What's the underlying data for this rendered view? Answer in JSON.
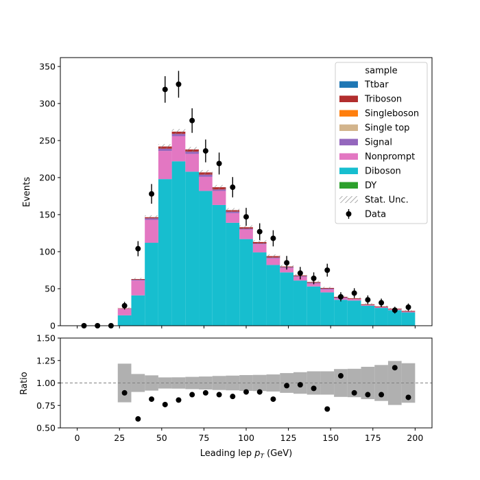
{
  "chart_data": {
    "type": "bar",
    "stacked": true,
    "xlabel": "Leading lep $p_T$ (GeV)",
    "xlabel_parts": {
      "pre": "Leading lep ",
      "var": "p",
      "sub": "T",
      "post": " (GeV)"
    },
    "ylabel": "Events",
    "ratio_ylabel": "Ratio",
    "xlim": [
      -10,
      210
    ],
    "ylim": [
      0,
      362
    ],
    "ratio_ylim": [
      0.5,
      1.5
    ],
    "x_ticks": [
      "0",
      "25",
      "50",
      "75",
      "100",
      "125",
      "150",
      "175",
      "200"
    ],
    "y_ticks": [
      "0",
      "50",
      "100",
      "150",
      "200",
      "250",
      "300",
      "350"
    ],
    "ratio_ticks": [
      "0.50",
      "0.75",
      "1.00",
      "1.25",
      "1.50"
    ],
    "bin_edges": [
      0,
      8,
      16,
      24,
      32,
      40,
      48,
      56,
      64,
      72,
      80,
      88,
      96,
      104,
      112,
      120,
      128,
      136,
      144,
      152,
      160,
      168,
      176,
      184,
      192,
      200
    ],
    "grid": false,
    "legend": {
      "title": "sample",
      "placement": "top-right",
      "entries": [
        {
          "label": "Ttbar",
          "kind": "patch",
          "color": "#1f77b4"
        },
        {
          "label": "Triboson",
          "kind": "patch",
          "color": "#b22e2e"
        },
        {
          "label": "Singleboson",
          "kind": "patch",
          "color": "#ff7f0e"
        },
        {
          "label": "Single top",
          "kind": "patch",
          "color": "#d2b48c"
        },
        {
          "label": "Signal",
          "kind": "patch",
          "color": "#9467bd"
        },
        {
          "label": "Nonprompt",
          "kind": "patch",
          "color": "#e377c2"
        },
        {
          "label": "Diboson",
          "kind": "patch",
          "color": "#17becf"
        },
        {
          "label": "DY",
          "kind": "patch",
          "color": "#2ca02c"
        },
        {
          "label": "Stat. Unc.",
          "kind": "hatch",
          "color": "#888888"
        },
        {
          "label": "Data",
          "kind": "errorbar",
          "color": "#000000"
        }
      ]
    },
    "series": [
      {
        "name": "DY",
        "color": "#2ca02c",
        "values": [
          0,
          0,
          0,
          0,
          0,
          0,
          0,
          0,
          0,
          0,
          0,
          0,
          0,
          0,
          0,
          0,
          0,
          0,
          0,
          0,
          0,
          0,
          0,
          0,
          0
        ]
      },
      {
        "name": "Diboson",
        "color": "#17becf",
        "values": [
          0,
          0,
          0,
          14,
          41,
          112,
          198,
          222,
          208,
          182,
          163,
          139,
          117,
          99,
          82,
          72,
          61,
          53,
          45,
          35,
          34,
          27,
          24,
          21,
          18
        ]
      },
      {
        "name": "Nonprompt",
        "color": "#e377c2",
        "values": [
          0,
          0,
          0,
          9,
          20,
          31,
          38,
          34,
          24,
          19,
          19,
          13,
          13,
          11,
          9,
          6,
          5,
          4,
          4,
          2,
          2,
          1,
          1,
          1,
          1
        ]
      },
      {
        "name": "Signal",
        "color": "#9467bd",
        "values": [
          0,
          0,
          0,
          0,
          1,
          2,
          3,
          3,
          3,
          3,
          2,
          2,
          1,
          1,
          1,
          1,
          1,
          1,
          1,
          1,
          0,
          0,
          0,
          0,
          0
        ]
      },
      {
        "name": "Single top",
        "color": "#d2b48c",
        "values": [
          0,
          0,
          0,
          0,
          0,
          0,
          0,
          0,
          0,
          0,
          0,
          0,
          0,
          0,
          0,
          0,
          0,
          0,
          0,
          0,
          0,
          0,
          0,
          0,
          0
        ]
      },
      {
        "name": "Singleboson",
        "color": "#ff7f0e",
        "values": [
          0,
          0,
          0,
          0,
          0,
          0,
          0,
          0,
          0,
          0,
          0,
          0,
          0,
          0,
          0,
          0,
          0,
          0,
          0,
          0,
          0,
          0,
          0,
          0,
          0
        ]
      },
      {
        "name": "Triboson",
        "color": "#b22e2e",
        "values": [
          0,
          0,
          0,
          0.5,
          1,
          1.5,
          3,
          3,
          3,
          3,
          3,
          2,
          2,
          2,
          2,
          1,
          1,
          1,
          1,
          1,
          1,
          1,
          1,
          1,
          1
        ]
      },
      {
        "name": "Ttbar",
        "color": "#1f77b4",
        "values": [
          0,
          0,
          0,
          0,
          0,
          0,
          0,
          0,
          0,
          0,
          0,
          0,
          0,
          0,
          0,
          0,
          0,
          0,
          0,
          0,
          0,
          0,
          0,
          0,
          0
        ]
      }
    ],
    "stat_unc": [
      0,
      0,
      0,
      1.2,
      1.6,
      2.5,
      3.2,
      3.5,
      3.3,
      3.2,
      3,
      2.8,
      2.6,
      2.5,
      2.2,
      2,
      1.8,
      1.7,
      1.6,
      1.4,
      1.4,
      1.3,
      1.2,
      1.1,
      1.0
    ],
    "data": {
      "name": "Data",
      "x": [
        4,
        12,
        20,
        28,
        36,
        44,
        52,
        60,
        68,
        76,
        84,
        92,
        100,
        108,
        116,
        124,
        132,
        140,
        148,
        156,
        164,
        172,
        180,
        188,
        196
      ],
      "y": [
        0,
        0,
        0,
        27,
        104,
        178,
        319,
        326,
        277,
        236,
        219,
        187,
        147,
        127,
        118,
        85,
        71,
        64,
        75,
        39,
        44,
        35,
        31,
        21,
        25
      ],
      "yerr": [
        0,
        0,
        0,
        5.2,
        10.2,
        13.3,
        17.9,
        18.1,
        16.6,
        15.4,
        14.8,
        13.7,
        12.1,
        11.3,
        10.9,
        9.2,
        8.4,
        8,
        8.7,
        6.2,
        6.6,
        5.9,
        5.6,
        4.6,
        5
      ]
    },
    "ratio": {
      "x": [
        28,
        36,
        44,
        52,
        60,
        68,
        76,
        84,
        92,
        100,
        108,
        116,
        124,
        132,
        140,
        148,
        156,
        164,
        172,
        180,
        188,
        196
      ],
      "y": [
        0.89,
        0.6,
        0.82,
        0.76,
        0.81,
        0.87,
        0.89,
        0.87,
        0.85,
        0.9,
        0.9,
        0.82,
        0.97,
        0.98,
        0.94,
        0.71,
        1.08,
        0.89,
        0.87,
        0.87,
        1.17,
        0.84
      ],
      "band_half": [
        0.215,
        0.1,
        0.085,
        0.062,
        0.063,
        0.068,
        0.072,
        0.078,
        0.082,
        0.088,
        0.09,
        0.095,
        0.11,
        0.12,
        0.13,
        0.13,
        0.155,
        0.158,
        0.18,
        0.2,
        0.245,
        0.22
      ],
      "reference": 1.0
    }
  }
}
